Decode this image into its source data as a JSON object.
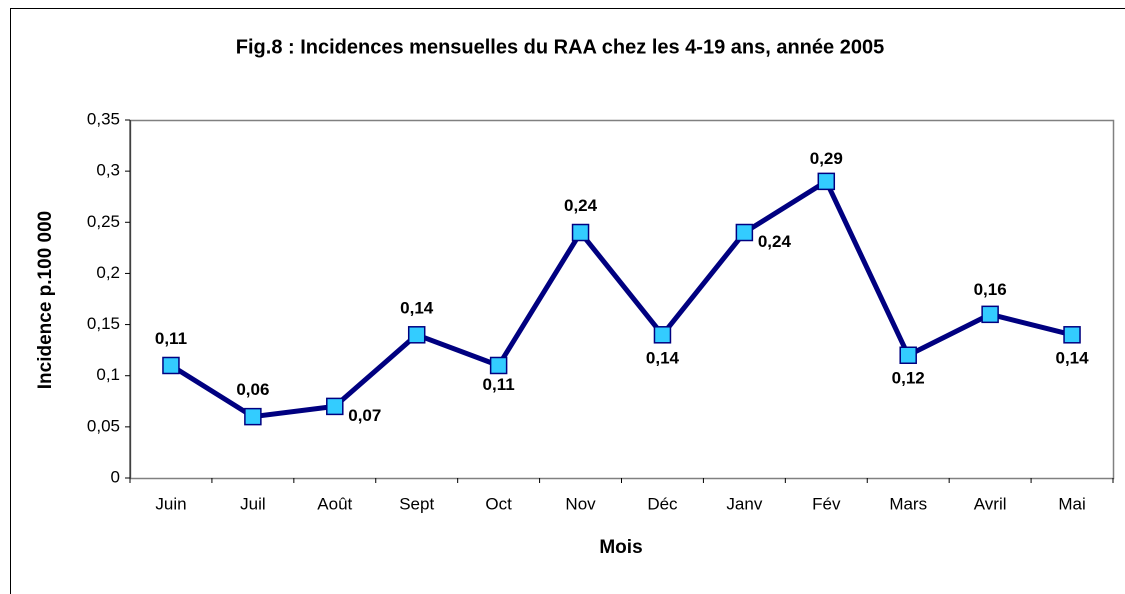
{
  "chart_data": {
    "type": "line",
    "title": "Fig.8 : Incidences mensuelles du RAA chez les 4-19 ans, année 2005",
    "x_label": "Mois",
    "y_label": "Incidence p.100 000",
    "categories": [
      "Juin",
      "Juil",
      "Août",
      "Sept",
      "Oct",
      "Nov",
      "Déc",
      "Janv",
      "Fév",
      "Mars",
      "Avril",
      "Mai"
    ],
    "series": [
      {
        "name": "Incidence",
        "color": "#000080",
        "marker_color": "#33ccff",
        "values": [
          0.11,
          0.06,
          0.07,
          0.14,
          0.11,
          0.24,
          0.14,
          0.24,
          0.29,
          0.12,
          0.16,
          0.14
        ],
        "value_labels": [
          "0,11",
          "0,06",
          "0,07",
          "0,14",
          "0,11",
          "0,24",
          "0,14",
          "0,24",
          "0,29",
          "0,12",
          "0,16",
          "0,14"
        ]
      }
    ],
    "ylim": [
      0,
      0.35
    ],
    "yticks": [
      0,
      {
        "value": 0.05,
        "label": "0,05"
      },
      {
        "value": 0.1,
        "label": "0,1"
      },
      {
        "value": 0.15,
        "label": "0,15"
      },
      {
        "value": 0.2,
        "label": "0,2"
      },
      {
        "value": 0.25,
        "label": "0,25"
      },
      {
        "value": 0.3,
        "label": "0,3"
      },
      {
        "value": 0.35,
        "label": "0,35"
      }
    ]
  }
}
